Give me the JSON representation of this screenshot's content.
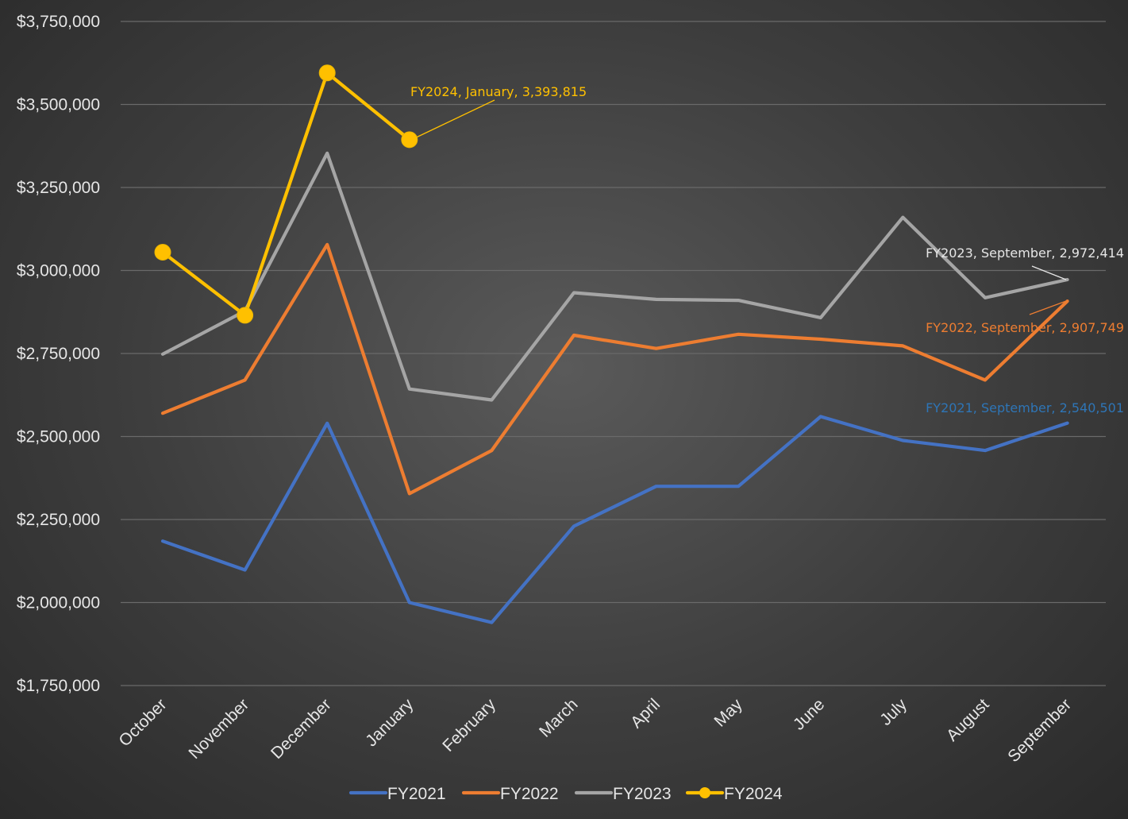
{
  "chart_data": {
    "type": "line",
    "title": "",
    "xlabel": "",
    "ylabel": "",
    "ylim": [
      1750000,
      3750000
    ],
    "yticks": [
      1750000,
      2000000,
      2250000,
      2500000,
      2750000,
      3000000,
      3250000,
      3500000,
      3750000
    ],
    "ytick_labels": [
      "$1,750,000",
      "$2,000,000",
      "$2,250,000",
      "$2,500,000",
      "$2,750,000",
      "$3,000,000",
      "$3,250,000",
      "$3,500,000",
      "$3,750,000"
    ],
    "grid": true,
    "legend_position": "bottom",
    "categories": [
      "October",
      "November",
      "December",
      "January",
      "February",
      "March",
      "April",
      "May",
      "June",
      "July",
      "August",
      "September"
    ],
    "series": [
      {
        "name": "FY2021",
        "color": "#4472c4",
        "markers": false,
        "values": [
          2185000,
          2098000,
          2540000,
          2000000,
          1940000,
          2230000,
          2350000,
          2350000,
          2560000,
          2488000,
          2458000,
          2540501
        ]
      },
      {
        "name": "FY2022",
        "color": "#ed7d31",
        "markers": false,
        "values": [
          2570000,
          2670000,
          3078000,
          2328000,
          2458000,
          2805000,
          2765000,
          2808000,
          2793000,
          2773000,
          2670000,
          2907749
        ]
      },
      {
        "name": "FY2023",
        "color": "#a5a5a5",
        "markers": false,
        "values": [
          2748000,
          2878000,
          3353000,
          2643000,
          2610000,
          2933000,
          2913000,
          2910000,
          2858000,
          3160000,
          2918000,
          2972414
        ]
      },
      {
        "name": "FY2024",
        "color": "#ffc000",
        "markers": true,
        "values": [
          3055000,
          2865000,
          3595000,
          3393815,
          null,
          null,
          null,
          null,
          null,
          null,
          null,
          null
        ]
      }
    ],
    "annotations": [
      {
        "text": "FY2024, January,  3,393,815",
        "series": "FY2024",
        "category": "January",
        "color": "#ffc000"
      },
      {
        "text": "FY2023, September,  2,972,414",
        "series": "FY2023",
        "category": "September",
        "color": "#e6e6e6"
      },
      {
        "text": "FY2022, September,  2,907,749",
        "series": "FY2022",
        "category": "September",
        "color": "#ed7d31"
      },
      {
        "text": "FY2021, September,  2,540,501",
        "series": "FY2021",
        "category": "September",
        "color": "#2e75b6"
      }
    ]
  }
}
